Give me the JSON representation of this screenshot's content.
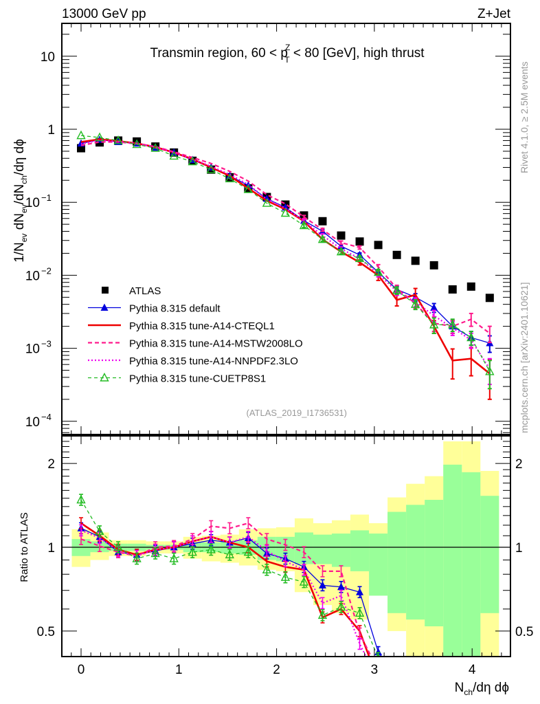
{
  "chart_data": [
    {
      "type": "line",
      "panel": "main",
      "title_left": "13000 GeV pp",
      "title_right": "Z+Jet",
      "annotation": "Transmin region, 60 < p_T^Z < 80 [GeV], high thrust",
      "annotation_parts": {
        "pre": "Transmin region, 60 < p",
        "sup": "Z",
        "sub": "T",
        "post": " < 80 [GeV], high thrust"
      },
      "analysis_label": "(ATLAS_2019_I1736531)",
      "side_label_top": "Rivet 4.1.0, ≥ 2.5M events",
      "side_label_bottom": "mcplots.cern.ch [arXiv:2401.10621]",
      "ylabel": "1/N_ev dN_ev/dN_ch/dη dϕ",
      "ylabel_parts": {
        "a": "1/N",
        "a_sub": "ev",
        "b": " dN",
        "b_sub": "ev",
        "c": "/dN",
        "c_sub": "ch",
        "d": "/dη dϕ"
      },
      "yscale": "log",
      "ylim": [
        7e-05,
        25
      ],
      "xlim": [
        -0.2,
        4.4
      ],
      "ytick_labels": [
        {
          "value": 10,
          "label": "10"
        },
        {
          "value": 1,
          "label": "1"
        },
        {
          "value": 0.1,
          "label": "10",
          "exp": "−1"
        },
        {
          "value": 0.01,
          "label": "10",
          "exp": "−2"
        },
        {
          "value": 0.001,
          "label": "10",
          "exp": "−3"
        },
        {
          "value": 0.0001,
          "label": "10",
          "exp": "−4"
        }
      ],
      "legend_position": "bottom-left",
      "x": [
        0.0,
        0.19,
        0.38,
        0.57,
        0.76,
        0.95,
        1.14,
        1.33,
        1.52,
        1.71,
        1.9,
        2.09,
        2.28,
        2.47,
        2.66,
        2.85,
        3.04,
        3.23,
        3.42,
        3.61,
        3.8,
        3.99,
        4.18
      ],
      "series": [
        {
          "name": "ATLAS",
          "color": "#000000",
          "marker": "square",
          "line": "none",
          "values": [
            0.55,
            0.66,
            0.7,
            0.68,
            0.58,
            0.48,
            0.37,
            0.28,
            0.22,
            0.155,
            0.118,
            0.093,
            0.066,
            0.055,
            0.035,
            0.029,
            0.026,
            0.019,
            0.0158,
            0.0137,
            0.0064,
            0.007,
            0.0049
          ]
        },
        {
          "name": "Pythia 8.315 default",
          "color": "#0000dd",
          "marker": "triangle-filled",
          "line": "solid-thin",
          "values": [
            0.64,
            0.72,
            0.67,
            0.64,
            0.56,
            0.48,
            0.38,
            0.3,
            0.23,
            0.17,
            0.112,
            0.085,
            0.056,
            0.04,
            0.025,
            0.019,
            0.011,
            0.0064,
            0.005,
            0.0036,
            0.002,
            0.0014,
            0.00118
          ],
          "err": [
            0,
            0,
            0,
            0,
            0,
            0,
            0,
            0,
            0,
            0,
            0,
            0,
            0.003,
            0.002,
            0.0015,
            0.0012,
            0.001,
            0.0007,
            0.0006,
            0.0005,
            0.0004,
            0.0003,
            0.0003
          ]
        },
        {
          "name": "Pythia 8.315 tune-A14-CTEQL1",
          "color": "#ee0000",
          "marker": "none",
          "line": "solid-thick",
          "values": [
            0.67,
            0.73,
            0.69,
            0.64,
            0.57,
            0.48,
            0.39,
            0.3,
            0.23,
            0.155,
            0.105,
            0.08,
            0.055,
            0.031,
            0.021,
            0.015,
            0.01,
            0.0046,
            0.0054,
            0.002,
            0.00068,
            0.00072,
            0.00045
          ],
          "err": [
            0,
            0,
            0,
            0,
            0,
            0,
            0,
            0,
            0,
            0,
            0,
            0,
            0.003,
            0.002,
            0.0015,
            0.0012,
            0.0015,
            0.0008,
            0.0012,
            0.0004,
            0.0003,
            0.0003,
            0.00025
          ]
        },
        {
          "name": "Pythia 8.315 tune-A14-MSTW2008LO",
          "color": "#ff1a8c",
          "marker": "none",
          "line": "dashed",
          "values": [
            0.6,
            0.67,
            0.67,
            0.63,
            0.58,
            0.49,
            0.41,
            0.34,
            0.265,
            0.195,
            0.127,
            0.095,
            0.063,
            0.042,
            0.028,
            0.024,
            0.013,
            0.0066,
            0.0041,
            0.0022,
            0.002,
            0.0025,
            0.0016
          ],
          "err": [
            0,
            0,
            0,
            0,
            0,
            0,
            0,
            0,
            0,
            0,
            0,
            0,
            0.003,
            0.002,
            0.0015,
            0.0012,
            0.001,
            0.0007,
            0.0006,
            0.0005,
            0.0004,
            0.0005,
            0.0004
          ]
        },
        {
          "name": "Pythia 8.315 tune-A14-NNPDF2.3LO",
          "color": "#ee00ee",
          "marker": "none",
          "line": "dotted",
          "values": [
            0.63,
            0.71,
            0.68,
            0.64,
            0.57,
            0.48,
            0.39,
            0.31,
            0.24,
            0.175,
            0.11,
            0.083,
            0.055,
            0.035,
            0.023,
            0.017,
            0.0105,
            0.006,
            0.0043,
            0.0028,
            0.0019,
            0.0013,
            0.00052
          ],
          "err": [
            0,
            0,
            0,
            0,
            0,
            0,
            0,
            0,
            0,
            0,
            0,
            0,
            0.003,
            0.002,
            0.0015,
            0.0012,
            0.001,
            0.0007,
            0.0006,
            0.0005,
            0.0004,
            0.0003,
            0.0002
          ]
        },
        {
          "name": "Pythia 8.315 tune-CUETP8S1",
          "color": "#22bb22",
          "marker": "triangle-open",
          "line": "dashed-thin",
          "values": [
            0.82,
            0.77,
            0.7,
            0.62,
            0.55,
            0.43,
            0.36,
            0.28,
            0.21,
            0.15,
            0.097,
            0.071,
            0.048,
            0.031,
            0.021,
            0.017,
            0.011,
            0.0062,
            0.004,
            0.0021,
            0.0021,
            0.0014,
            0.00048
          ],
          "err": [
            0,
            0,
            0,
            0,
            0,
            0,
            0,
            0,
            0,
            0,
            0,
            0,
            0.003,
            0.002,
            0.0015,
            0.0012,
            0.001,
            0.0007,
            0.0006,
            0.0005,
            0.0004,
            0.0003,
            0.0002
          ]
        }
      ]
    },
    {
      "type": "line",
      "panel": "ratio",
      "ylabel": "Ratio to ATLAS",
      "xlabel": "N_ch/dη dϕ",
      "xlabel_parts": {
        "a": "N",
        "a_sub": "ch",
        "b": "/dη dϕ"
      },
      "yscale": "log",
      "ylim": [
        0.4,
        2.4
      ],
      "xlim": [
        -0.2,
        4.4
      ],
      "ytick_labels": [
        {
          "value": 2,
          "label": "2"
        },
        {
          "value": 1,
          "label": "1"
        },
        {
          "value": 0.5,
          "label": "0.5"
        }
      ],
      "xtick_labels": [
        {
          "value": 0,
          "label": "0"
        },
        {
          "value": 1,
          "label": "1"
        },
        {
          "value": 2,
          "label": "2"
        },
        {
          "value": 3,
          "label": "3"
        },
        {
          "value": 4,
          "label": "4"
        }
      ],
      "bin_edges": [
        -0.095,
        0.095,
        0.285,
        0.475,
        0.665,
        0.855,
        1.045,
        1.235,
        1.425,
        1.615,
        1.805,
        1.995,
        2.185,
        2.375,
        2.565,
        2.755,
        2.945,
        3.135,
        3.325,
        3.515,
        3.705,
        3.895,
        4.085,
        4.275
      ],
      "band_inner": {
        "color": "#99ff99",
        "lo": [
          0.93,
          0.96,
          0.97,
          0.97,
          0.98,
          0.98,
          0.96,
          0.96,
          0.95,
          0.94,
          0.9,
          0.89,
          0.87,
          0.87,
          0.85,
          0.82,
          0.67,
          0.58,
          0.55,
          0.52,
          0.38,
          0.38,
          0.58
        ],
        "hi": [
          1.07,
          1.05,
          1.03,
          1.03,
          1.02,
          1.02,
          1.04,
          1.04,
          1.05,
          1.06,
          1.09,
          1.09,
          1.13,
          1.11,
          1.12,
          1.15,
          1.12,
          1.34,
          1.42,
          1.48,
          1.98,
          1.86,
          1.53
        ]
      },
      "band_outer": {
        "color": "#ffff99",
        "lo": [
          0.85,
          0.9,
          0.93,
          0.93,
          0.95,
          0.95,
          0.91,
          0.89,
          0.88,
          0.86,
          0.83,
          0.82,
          0.69,
          0.62,
          0.58,
          0.55,
          0.82,
          0.5,
          0.38,
          0.38,
          0.38,
          0.38,
          0.38
        ],
        "hi": [
          1.16,
          1.13,
          1.06,
          1.06,
          1.05,
          1.05,
          1.09,
          1.1,
          1.11,
          1.16,
          1.17,
          1.18,
          1.27,
          1.22,
          1.25,
          1.31,
          1.22,
          1.51,
          1.69,
          1.8,
          2.4,
          2.4,
          1.88
        ]
      },
      "series": [
        {
          "name": "Pythia 8.315 default",
          "color": "#0000dd",
          "marker": "triangle-filled",
          "line": "solid-thin",
          "values": [
            1.17,
            1.09,
            0.96,
            0.94,
            0.97,
            1.0,
            1.03,
            1.06,
            1.04,
            1.08,
            0.95,
            0.91,
            0.85,
            0.73,
            0.72,
            0.69,
            0.42,
            0.34,
            null,
            null,
            null,
            null,
            null
          ]
        },
        {
          "name": "Pythia 8.315 tune-A14-CTEQL1",
          "color": "#ee0000",
          "marker": "none",
          "line": "solid-thick",
          "values": [
            1.22,
            1.1,
            0.98,
            0.94,
            0.98,
            1.0,
            1.05,
            1.09,
            1.04,
            1.0,
            0.89,
            0.85,
            0.83,
            0.56,
            0.6,
            0.5,
            0.33,
            null,
            null,
            null,
            null,
            null,
            null
          ]
        },
        {
          "name": "Pythia 8.315 tune-A14-MSTW2008LO",
          "color": "#ff1a8c",
          "marker": "none",
          "line": "dashed",
          "values": [
            1.07,
            1.01,
            0.96,
            0.93,
            1.0,
            1.01,
            1.07,
            1.19,
            1.17,
            1.22,
            1.07,
            1.02,
            0.96,
            0.82,
            0.82,
            0.49,
            0.36,
            null,
            null,
            null,
            null,
            null,
            null
          ]
        },
        {
          "name": "Pythia 8.315 tune-A14-NNPDF2.3LO",
          "color": "#ee00ee",
          "marker": "none",
          "line": "dotted",
          "values": [
            1.15,
            1.08,
            0.97,
            0.93,
            0.98,
            1.0,
            1.05,
            1.09,
            1.04,
            1.09,
            0.97,
            0.89,
            0.83,
            0.63,
            0.67,
            0.45,
            0.33,
            null,
            null,
            null,
            null,
            null,
            null
          ]
        },
        {
          "name": "Pythia 8.315 tune-CUETP8S1",
          "color": "#22bb22",
          "marker": "triangle-open",
          "line": "dashed-thin",
          "values": [
            1.48,
            1.14,
            1.0,
            0.91,
            0.95,
            0.91,
            0.96,
            0.98,
            0.94,
            0.96,
            0.83,
            0.78,
            0.75,
            0.57,
            0.61,
            0.58,
            0.4,
            0.33,
            null,
            null,
            null,
            null,
            null
          ]
        }
      ]
    }
  ]
}
